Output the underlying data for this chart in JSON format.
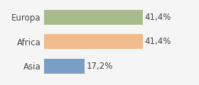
{
  "categories": [
    "Europa",
    "Africa",
    "Asia"
  ],
  "values": [
    41.4,
    41.4,
    17.2
  ],
  "bar_colors": [
    "#a8bb8c",
    "#f0bc8c",
    "#7b9ec4"
  ],
  "labels": [
    "41,4%",
    "41,4%",
    "17,2%"
  ],
  "background_color": "#f5f5f5",
  "xlim": [
    0,
    55
  ],
  "bar_height": 0.62,
  "label_fontsize": 8.5,
  "tick_fontsize": 8.5
}
